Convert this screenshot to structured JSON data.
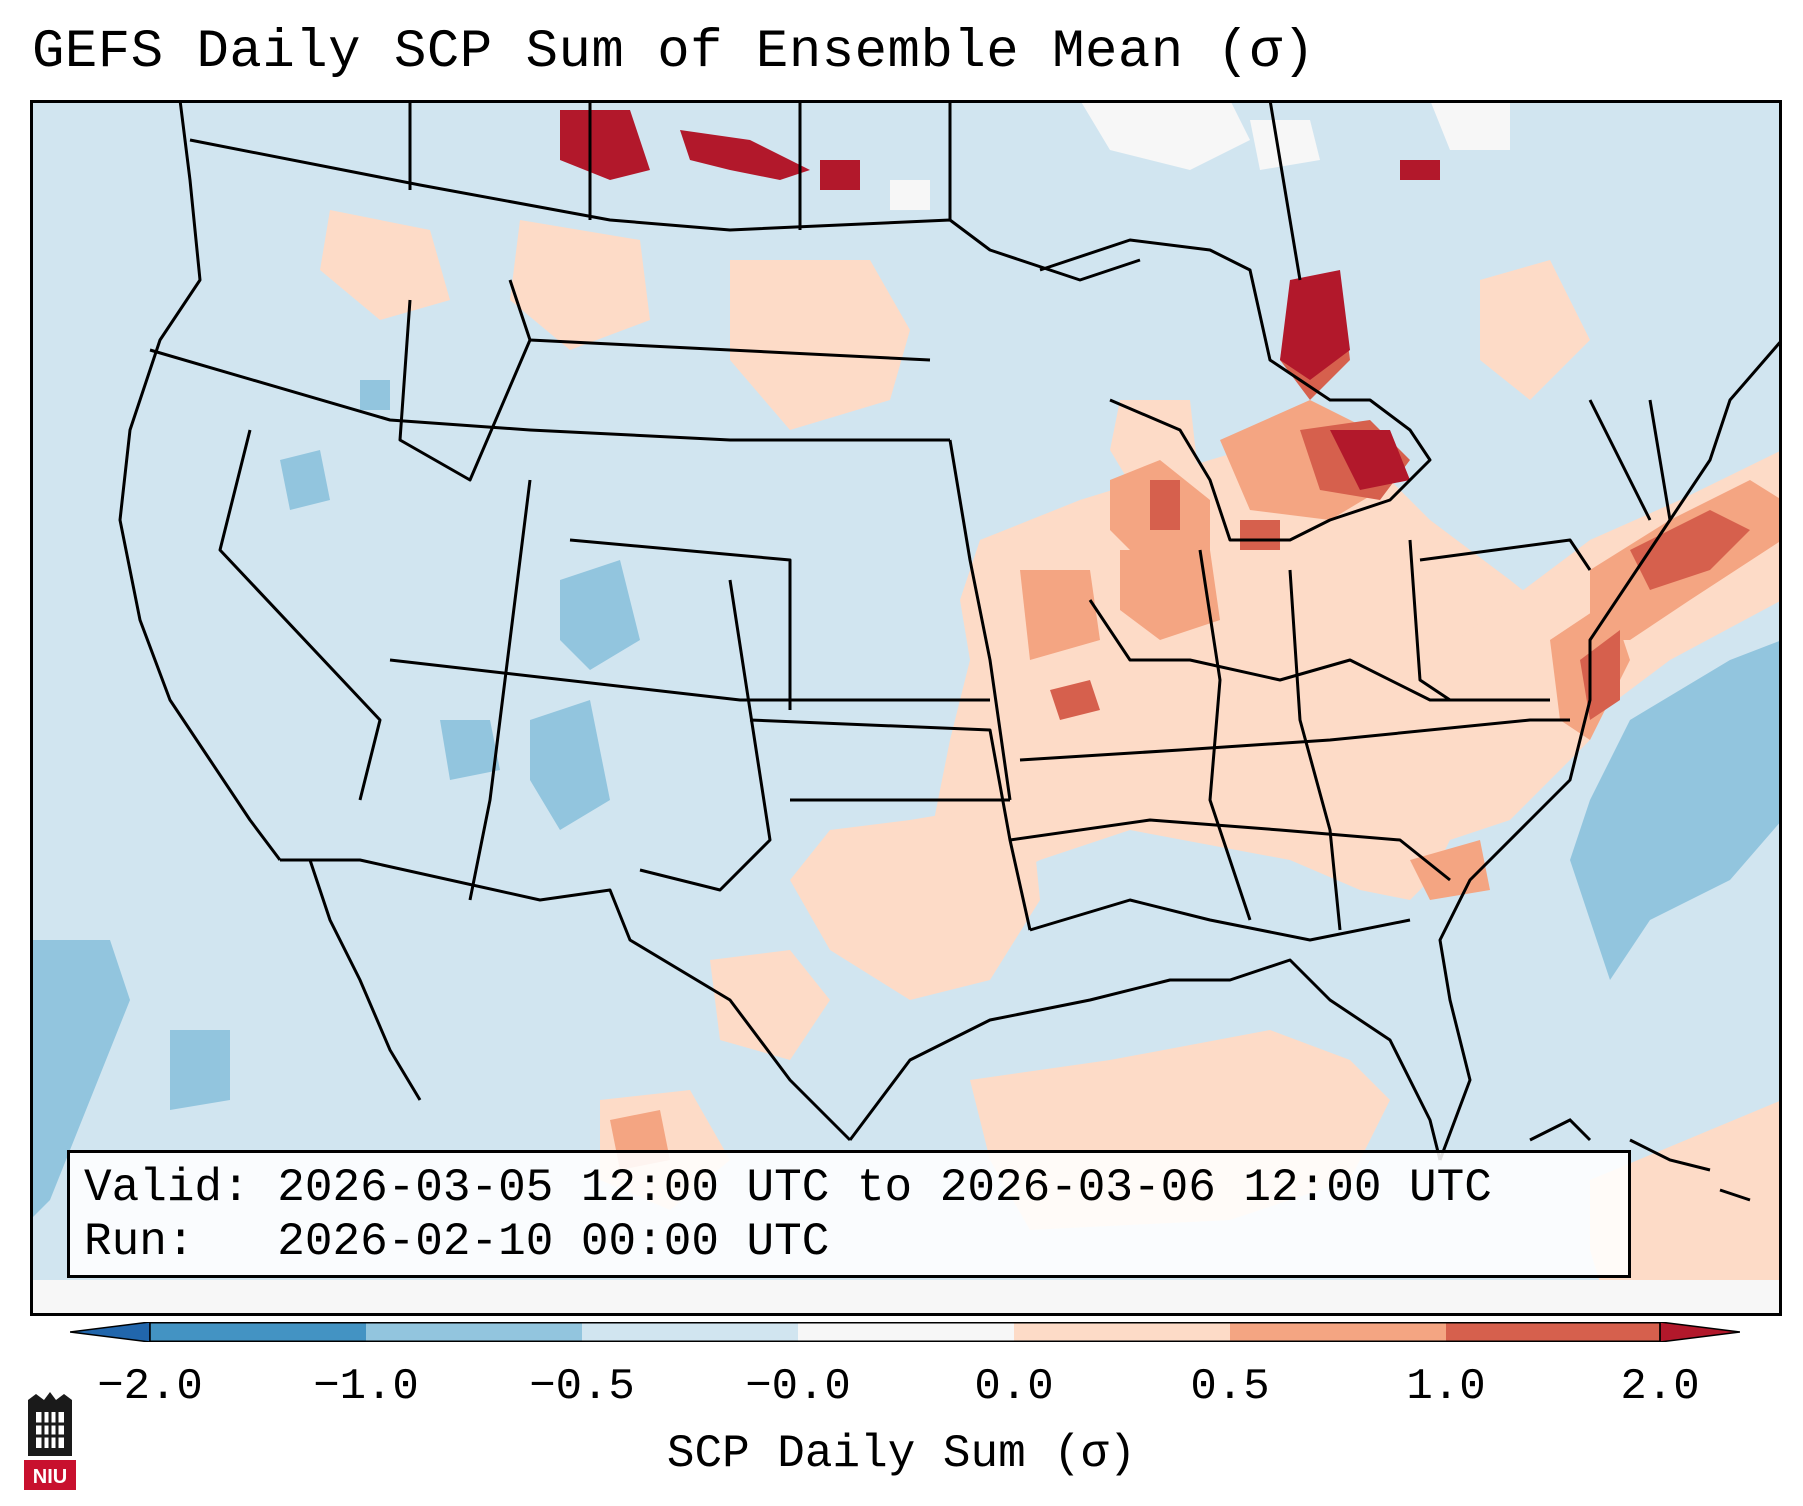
{
  "title": "GEFS Daily SCP Sum of Ensemble Mean (σ)",
  "info": {
    "valid_label": "Valid:",
    "valid_value": "2026-03-05 12:00 UTC to 2026-03-06 12:00 UTC",
    "run_label": "Run:",
    "run_value": "2026-02-10 00:00 UTC"
  },
  "colorbar": {
    "label": "SCP Daily Sum (σ)",
    "ticks": [
      "−2.0",
      "−1.0",
      "−0.5",
      "−0.0",
      "0.0",
      "0.5",
      "1.0",
      "2.0"
    ],
    "colors": [
      "#2166ac",
      "#4393c3",
      "#92c5de",
      "#d1e5f0",
      "#f7f7f7",
      "#fddbc7",
      "#f4a582",
      "#d6604d",
      "#b2182b"
    ],
    "extend": "both"
  },
  "logo": {
    "text": "NIU",
    "icon": "niu-castle-icon"
  }
}
